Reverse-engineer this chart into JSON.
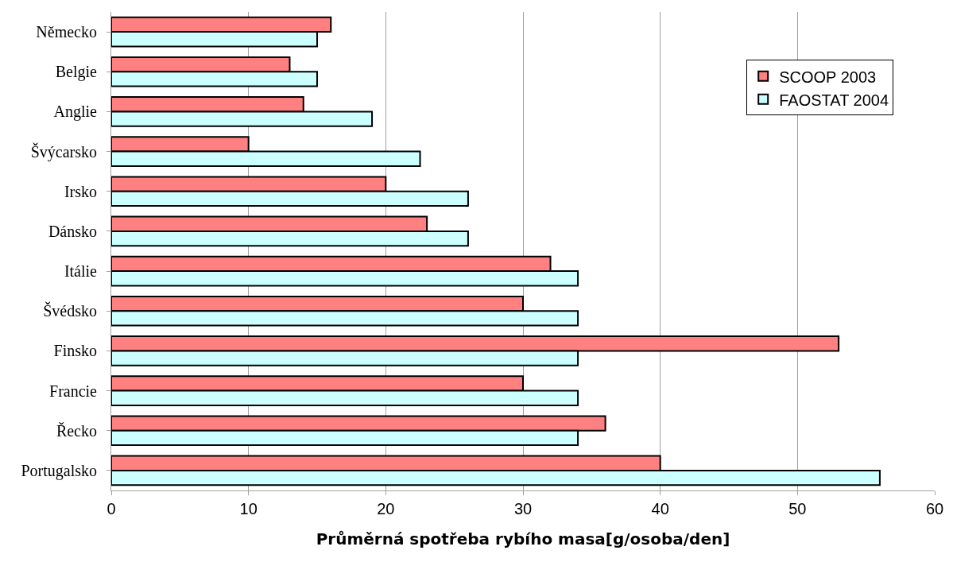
{
  "chart_data": {
    "type": "bar",
    "orientation": "horizontal",
    "xlabel": "Průměrná spotřeba rybího masa[g/osoba/den]",
    "categories": [
      "Německo",
      "Belgie",
      "Anglie",
      "Švýcarsko",
      "Irsko",
      "Dánsko",
      "Itálie",
      "Švédsko",
      "Finsko",
      "Francie",
      "Řecko",
      "Portugalsko"
    ],
    "series": [
      {
        "name": "SCOOP 2003",
        "color": "#ff8080",
        "values": [
          16,
          13,
          14,
          10,
          20,
          23,
          32,
          30,
          53,
          30,
          36,
          40
        ]
      },
      {
        "name": "FAOSTAT 2004",
        "color": "#ccffff",
        "values": [
          15,
          15,
          19,
          22.5,
          26,
          26,
          34,
          34,
          34,
          34,
          34,
          56
        ]
      }
    ],
    "xlim": [
      0,
      60
    ],
    "xticks": [
      0,
      10,
      20,
      30,
      40,
      50,
      60
    ],
    "grid": "x",
    "legend": "top right"
  }
}
